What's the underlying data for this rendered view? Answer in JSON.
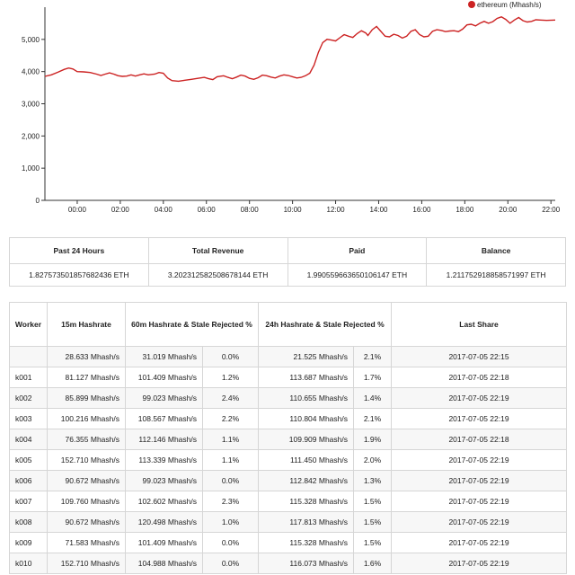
{
  "chart_data": {
    "type": "line",
    "legend": "ethereum (Mhash/s)",
    "legend_position": "top-right",
    "color": "#cc2222",
    "ylim": [
      0,
      6000
    ],
    "y_ticks": [
      "0",
      "1,000",
      "2,000",
      "3,000",
      "4,000",
      "5,000"
    ],
    "y_tick_values": [
      0,
      1000,
      2000,
      3000,
      4000,
      5000
    ],
    "x_ticks": [
      "00:00",
      "02:00",
      "04:00",
      "06:00",
      "08:00",
      "10:00",
      "12:00",
      "14:00",
      "16:00",
      "18:00",
      "20:00",
      "22:00"
    ],
    "x_tick_hours": [
      0,
      2,
      4,
      6,
      8,
      10,
      12,
      14,
      16,
      18,
      20,
      22
    ],
    "xlim_hours": [
      -1.5,
      22.2
    ],
    "grid": false,
    "series": [
      {
        "name": "ethereum (Mhash/s)",
        "points": [
          [
            -1.5,
            3850
          ],
          [
            -1.2,
            3900
          ],
          [
            -0.9,
            3980
          ],
          [
            -0.6,
            4070
          ],
          [
            -0.4,
            4110
          ],
          [
            -0.2,
            4080
          ],
          [
            0.0,
            4000
          ],
          [
            0.3,
            3990
          ],
          [
            0.6,
            3970
          ],
          [
            0.9,
            3920
          ],
          [
            1.1,
            3880
          ],
          [
            1.3,
            3920
          ],
          [
            1.5,
            3960
          ],
          [
            1.7,
            3920
          ],
          [
            1.9,
            3870
          ],
          [
            2.1,
            3850
          ],
          [
            2.3,
            3860
          ],
          [
            2.5,
            3900
          ],
          [
            2.7,
            3860
          ],
          [
            2.9,
            3900
          ],
          [
            3.1,
            3930
          ],
          [
            3.3,
            3900
          ],
          [
            3.6,
            3920
          ],
          [
            3.8,
            3970
          ],
          [
            4.0,
            3950
          ],
          [
            4.2,
            3800
          ],
          [
            4.4,
            3720
          ],
          [
            4.7,
            3700
          ],
          [
            5.0,
            3730
          ],
          [
            5.3,
            3760
          ],
          [
            5.6,
            3790
          ],
          [
            5.9,
            3820
          ],
          [
            6.1,
            3780
          ],
          [
            6.3,
            3750
          ],
          [
            6.5,
            3840
          ],
          [
            6.8,
            3870
          ],
          [
            7.0,
            3820
          ],
          [
            7.2,
            3780
          ],
          [
            7.4,
            3830
          ],
          [
            7.6,
            3890
          ],
          [
            7.8,
            3860
          ],
          [
            8.0,
            3790
          ],
          [
            8.2,
            3760
          ],
          [
            8.4,
            3810
          ],
          [
            8.6,
            3890
          ],
          [
            8.8,
            3870
          ],
          [
            9.0,
            3830
          ],
          [
            9.2,
            3800
          ],
          [
            9.4,
            3860
          ],
          [
            9.6,
            3900
          ],
          [
            9.8,
            3880
          ],
          [
            10.0,
            3840
          ],
          [
            10.2,
            3800
          ],
          [
            10.4,
            3820
          ],
          [
            10.6,
            3870
          ],
          [
            10.8,
            3950
          ],
          [
            11.0,
            4200
          ],
          [
            11.2,
            4600
          ],
          [
            11.4,
            4900
          ],
          [
            11.6,
            5000
          ],
          [
            11.8,
            4980
          ],
          [
            12.0,
            4950
          ],
          [
            12.2,
            5050
          ],
          [
            12.4,
            5150
          ],
          [
            12.6,
            5100
          ],
          [
            12.8,
            5060
          ],
          [
            13.0,
            5180
          ],
          [
            13.2,
            5270
          ],
          [
            13.4,
            5200
          ],
          [
            13.5,
            5120
          ],
          [
            13.7,
            5300
          ],
          [
            13.9,
            5400
          ],
          [
            14.1,
            5250
          ],
          [
            14.3,
            5100
          ],
          [
            14.5,
            5080
          ],
          [
            14.7,
            5160
          ],
          [
            14.9,
            5120
          ],
          [
            15.1,
            5040
          ],
          [
            15.3,
            5100
          ],
          [
            15.5,
            5250
          ],
          [
            15.7,
            5300
          ],
          [
            15.9,
            5150
          ],
          [
            16.1,
            5080
          ],
          [
            16.3,
            5100
          ],
          [
            16.5,
            5250
          ],
          [
            16.7,
            5300
          ],
          [
            16.9,
            5280
          ],
          [
            17.1,
            5240
          ],
          [
            17.3,
            5260
          ],
          [
            17.5,
            5270
          ],
          [
            17.7,
            5240
          ],
          [
            17.9,
            5320
          ],
          [
            18.1,
            5450
          ],
          [
            18.3,
            5470
          ],
          [
            18.5,
            5420
          ],
          [
            18.7,
            5500
          ],
          [
            18.9,
            5560
          ],
          [
            19.1,
            5500
          ],
          [
            19.3,
            5550
          ],
          [
            19.5,
            5650
          ],
          [
            19.7,
            5700
          ],
          [
            19.9,
            5620
          ],
          [
            20.1,
            5500
          ],
          [
            20.3,
            5600
          ],
          [
            20.5,
            5680
          ],
          [
            20.7,
            5580
          ],
          [
            20.9,
            5540
          ],
          [
            21.1,
            5560
          ],
          [
            21.3,
            5610
          ],
          [
            21.5,
            5600
          ],
          [
            21.8,
            5590
          ],
          [
            22.2,
            5600
          ]
        ]
      }
    ]
  },
  "summary": {
    "headers": [
      "Past 24 Hours",
      "Total Revenue",
      "Paid",
      "Balance"
    ],
    "values": [
      "1.827573501857682436 ETH",
      "3.202312582508678144 ETH",
      "1.990559663650106147 ETH",
      "1.211752918858571997 ETH"
    ]
  },
  "workers": {
    "headers": {
      "worker": "Worker",
      "h15": "15m Hashrate",
      "h60": "60m Hashrate & Stale Rejected %",
      "h24": "24h Hashrate & Stale Rejected %",
      "last": "Last Share"
    },
    "rows": [
      {
        "worker": "",
        "h15": "28.633 Mhash/s",
        "h60": "31.019 Mhash/s",
        "s60": "0.0%",
        "h24": "21.525 Mhash/s",
        "s24": "2.1%",
        "last": "2017-07-05 22:15"
      },
      {
        "worker": "k001",
        "h15": "81.127 Mhash/s",
        "h60": "101.409 Mhash/s",
        "s60": "1.2%",
        "h24": "113.687 Mhash/s",
        "s24": "1.7%",
        "last": "2017-07-05 22:18"
      },
      {
        "worker": "k002",
        "h15": "85.899 Mhash/s",
        "h60": "99.023 Mhash/s",
        "s60": "2.4%",
        "h24": "110.655 Mhash/s",
        "s24": "1.4%",
        "last": "2017-07-05 22:19"
      },
      {
        "worker": "k003",
        "h15": "100.216 Mhash/s",
        "h60": "108.567 Mhash/s",
        "s60": "2.2%",
        "h24": "110.804 Mhash/s",
        "s24": "2.1%",
        "last": "2017-07-05 22:19"
      },
      {
        "worker": "k004",
        "h15": "76.355 Mhash/s",
        "h60": "112.146 Mhash/s",
        "s60": "1.1%",
        "h24": "109.909 Mhash/s",
        "s24": "1.9%",
        "last": "2017-07-05 22:18"
      },
      {
        "worker": "k005",
        "h15": "152.710 Mhash/s",
        "h60": "113.339 Mhash/s",
        "s60": "1.1%",
        "h24": "111.450 Mhash/s",
        "s24": "2.0%",
        "last": "2017-07-05 22:19"
      },
      {
        "worker": "k006",
        "h15": "90.672 Mhash/s",
        "h60": "99.023 Mhash/s",
        "s60": "0.0%",
        "h24": "112.842 Mhash/s",
        "s24": "1.3%",
        "last": "2017-07-05 22:19"
      },
      {
        "worker": "k007",
        "h15": "109.760 Mhash/s",
        "h60": "102.602 Mhash/s",
        "s60": "2.3%",
        "h24": "115.328 Mhash/s",
        "s24": "1.5%",
        "last": "2017-07-05 22:19"
      },
      {
        "worker": "k008",
        "h15": "90.672 Mhash/s",
        "h60": "120.498 Mhash/s",
        "s60": "1.0%",
        "h24": "117.813 Mhash/s",
        "s24": "1.5%",
        "last": "2017-07-05 22:19"
      },
      {
        "worker": "k009",
        "h15": "71.583 Mhash/s",
        "h60": "101.409 Mhash/s",
        "s60": "0.0%",
        "h24": "115.328 Mhash/s",
        "s24": "1.5%",
        "last": "2017-07-05 22:19"
      },
      {
        "worker": "k010",
        "h15": "152.710 Mhash/s",
        "h60": "104.988 Mhash/s",
        "s60": "0.0%",
        "h24": "116.073 Mhash/s",
        "s24": "1.6%",
        "last": "2017-07-05 22:19"
      }
    ]
  }
}
